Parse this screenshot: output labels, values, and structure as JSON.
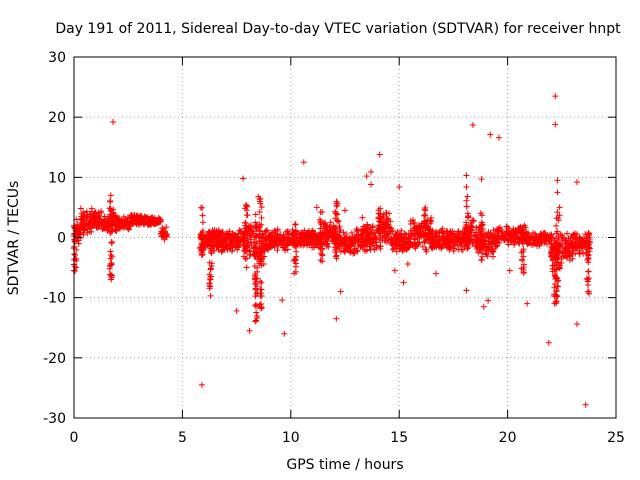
{
  "chart_data": {
    "type": "scatter",
    "title": "Day 191 of 2011, Sidereal Day-to-day VTEC variation (SDTVAR) for receiver hnpt",
    "xlabel": "GPS time / hours",
    "ylabel": "SDTVAR / TECUs",
    "xlim": [
      0,
      25
    ],
    "ylim": [
      -30,
      30
    ],
    "xticks": [
      0,
      5,
      10,
      15,
      20,
      25
    ],
    "yticks": [
      -30,
      -20,
      -10,
      0,
      10,
      20,
      30
    ],
    "xtick_labels": [
      "0",
      "5",
      "10",
      "15",
      "20",
      "25"
    ],
    "ytick_labels": [
      "-30",
      "-20",
      "-10",
      "0",
      "10",
      "20",
      "30"
    ],
    "grid": true,
    "legend": "none",
    "marker": "+",
    "color": "#ff0000",
    "series": [
      {
        "name": "SDTVAR",
        "bands": [
          {
            "x0": 0.0,
            "x1": 0.3,
            "ylo": -1.5,
            "yhi": 3.0
          },
          {
            "x0": 0.3,
            "x1": 0.8,
            "ylo": 0.0,
            "yhi": 5.0
          },
          {
            "x0": 0.8,
            "x1": 1.3,
            "ylo": 1.5,
            "yhi": 5.0
          },
          {
            "x0": 1.3,
            "x1": 1.6,
            "ylo": 0.5,
            "yhi": 4.0
          },
          {
            "x0": 1.6,
            "x1": 2.0,
            "ylo": 0.0,
            "yhi": 5.0
          },
          {
            "x0": 2.0,
            "x1": 2.6,
            "ylo": 1.0,
            "yhi": 3.5
          },
          {
            "x0": 2.6,
            "x1": 3.4,
            "ylo": 2.0,
            "yhi": 3.8
          },
          {
            "x0": 3.4,
            "x1": 4.0,
            "ylo": 2.0,
            "yhi": 3.5
          },
          {
            "x0": 4.0,
            "x1": 4.3,
            "ylo": -0.5,
            "yhi": 2.0
          },
          {
            "x0": 5.8,
            "x1": 6.5,
            "ylo": -2.5,
            "yhi": 1.5
          },
          {
            "x0": 6.5,
            "x1": 7.8,
            "ylo": -2.5,
            "yhi": 1.5
          },
          {
            "x0": 7.8,
            "x1": 8.3,
            "ylo": -4.0,
            "yhi": 4.0
          },
          {
            "x0": 8.3,
            "x1": 8.8,
            "ylo": -5.0,
            "yhi": 2.0
          },
          {
            "x0": 8.8,
            "x1": 10.0,
            "ylo": -2.5,
            "yhi": 1.5
          },
          {
            "x0": 10.0,
            "x1": 11.5,
            "ylo": -2.0,
            "yhi": 1.5
          },
          {
            "x0": 11.5,
            "x1": 12.3,
            "ylo": -2.0,
            "yhi": 3.0
          },
          {
            "x0": 12.3,
            "x1": 13.0,
            "ylo": -3.0,
            "yhi": 1.0
          },
          {
            "x0": 13.0,
            "x1": 14.0,
            "ylo": -3.0,
            "yhi": 2.5
          },
          {
            "x0": 14.0,
            "x1": 14.6,
            "ylo": -1.0,
            "yhi": 4.5
          },
          {
            "x0": 14.6,
            "x1": 15.5,
            "ylo": -2.5,
            "yhi": 1.5
          },
          {
            "x0": 15.5,
            "x1": 16.5,
            "ylo": -2.0,
            "yhi": 3.5
          },
          {
            "x0": 16.5,
            "x1": 18.0,
            "ylo": -2.5,
            "yhi": 1.5
          },
          {
            "x0": 18.0,
            "x1": 18.5,
            "ylo": -2.0,
            "yhi": 4.0
          },
          {
            "x0": 18.5,
            "x1": 19.5,
            "ylo": -3.5,
            "yhi": 2.0
          },
          {
            "x0": 19.5,
            "x1": 21.0,
            "ylo": -1.5,
            "yhi": 2.0
          },
          {
            "x0": 21.0,
            "x1": 22.0,
            "ylo": -1.5,
            "yhi": 1.0
          },
          {
            "x0": 22.0,
            "x1": 22.5,
            "ylo": -6.0,
            "yhi": 1.0
          },
          {
            "x0": 22.5,
            "x1": 23.0,
            "ylo": -4.5,
            "yhi": 1.0
          },
          {
            "x0": 23.0,
            "x1": 23.8,
            "ylo": -3.0,
            "yhi": 1.0
          }
        ],
        "spikes": [
          {
            "x": 0.05,
            "ylo": -6.5,
            "yhi": 2.0
          },
          {
            "x": 1.7,
            "ylo": -7.0,
            "yhi": 7.5
          },
          {
            "x": 5.9,
            "ylo": -3.0,
            "yhi": 5.0
          },
          {
            "x": 6.3,
            "ylo": -9.5,
            "yhi": -2.0
          },
          {
            "x": 7.95,
            "ylo": -5.0,
            "yhi": 5.5
          },
          {
            "x": 8.4,
            "ylo": -15.5,
            "yhi": 4.0
          },
          {
            "x": 8.6,
            "ylo": -12.0,
            "yhi": 7.0
          },
          {
            "x": 10.2,
            "ylo": -6.0,
            "yhi": 3.0
          },
          {
            "x": 11.4,
            "ylo": -4.5,
            "yhi": 4.5
          },
          {
            "x": 12.1,
            "ylo": -5.0,
            "yhi": 6.0
          },
          {
            "x": 14.1,
            "ylo": -2.0,
            "yhi": 5.5
          },
          {
            "x": 16.2,
            "ylo": -2.5,
            "yhi": 5.0
          },
          {
            "x": 18.15,
            "ylo": -2.0,
            "yhi": 7.0
          },
          {
            "x": 18.8,
            "ylo": -5.0,
            "yhi": 4.5
          },
          {
            "x": 20.7,
            "ylo": -6.0,
            "yhi": 2.0
          },
          {
            "x": 22.2,
            "ylo": -11.0,
            "yhi": 2.0
          },
          {
            "x": 22.3,
            "ylo": -10.0,
            "yhi": 5.0
          },
          {
            "x": 23.7,
            "ylo": -9.5,
            "yhi": 1.0
          }
        ],
        "outliers": [
          [
            1.8,
            19.2
          ],
          [
            1.7,
            7.0
          ],
          [
            0.1,
            -5.0
          ],
          [
            5.9,
            -24.5
          ],
          [
            6.3,
            -7.0
          ],
          [
            6.3,
            -9.7
          ],
          [
            7.5,
            -12.2
          ],
          [
            7.8,
            9.8
          ],
          [
            8.1,
            -15.5
          ],
          [
            8.4,
            -13.8
          ],
          [
            8.5,
            6.8
          ],
          [
            9.6,
            -10.4
          ],
          [
            9.7,
            -16.0
          ],
          [
            10.6,
            12.5
          ],
          [
            11.2,
            5.0
          ],
          [
            12.1,
            -13.5
          ],
          [
            12.3,
            -9.0
          ],
          [
            12.5,
            4.5
          ],
          [
            13.3,
            3.3
          ],
          [
            13.5,
            10.2
          ],
          [
            13.7,
            10.9
          ],
          [
            13.7,
            8.8
          ],
          [
            14.1,
            13.8
          ],
          [
            14.8,
            -5.5
          ],
          [
            15.0,
            8.4
          ],
          [
            15.2,
            -7.5
          ],
          [
            15.4,
            -4.4
          ],
          [
            16.7,
            -6.0
          ],
          [
            16.2,
            4.5
          ],
          [
            18.1,
            10.3
          ],
          [
            18.1,
            8.4
          ],
          [
            18.1,
            -8.8
          ],
          [
            18.4,
            18.7
          ],
          [
            18.8,
            9.7
          ],
          [
            18.9,
            -11.5
          ],
          [
            19.2,
            17.1
          ],
          [
            19.1,
            -10.5
          ],
          [
            19.6,
            16.6
          ],
          [
            20.1,
            -5.5
          ],
          [
            20.9,
            -11.0
          ],
          [
            21.9,
            -17.5
          ],
          [
            22.2,
            23.5
          ],
          [
            22.2,
            18.8
          ],
          [
            22.3,
            9.5
          ],
          [
            22.3,
            7.5
          ],
          [
            22.4,
            5.0
          ],
          [
            22.4,
            3.7
          ],
          [
            22.2,
            -9.5
          ],
          [
            23.2,
            9.2
          ],
          [
            23.2,
            -14.4
          ],
          [
            23.7,
            -7.0
          ],
          [
            23.6,
            -27.8
          ],
          [
            23.7,
            -9.0
          ],
          [
            22.2,
            -6.5
          ],
          [
            0.1,
            3.0
          ],
          [
            4.1,
            1.0
          ]
        ]
      }
    ]
  }
}
